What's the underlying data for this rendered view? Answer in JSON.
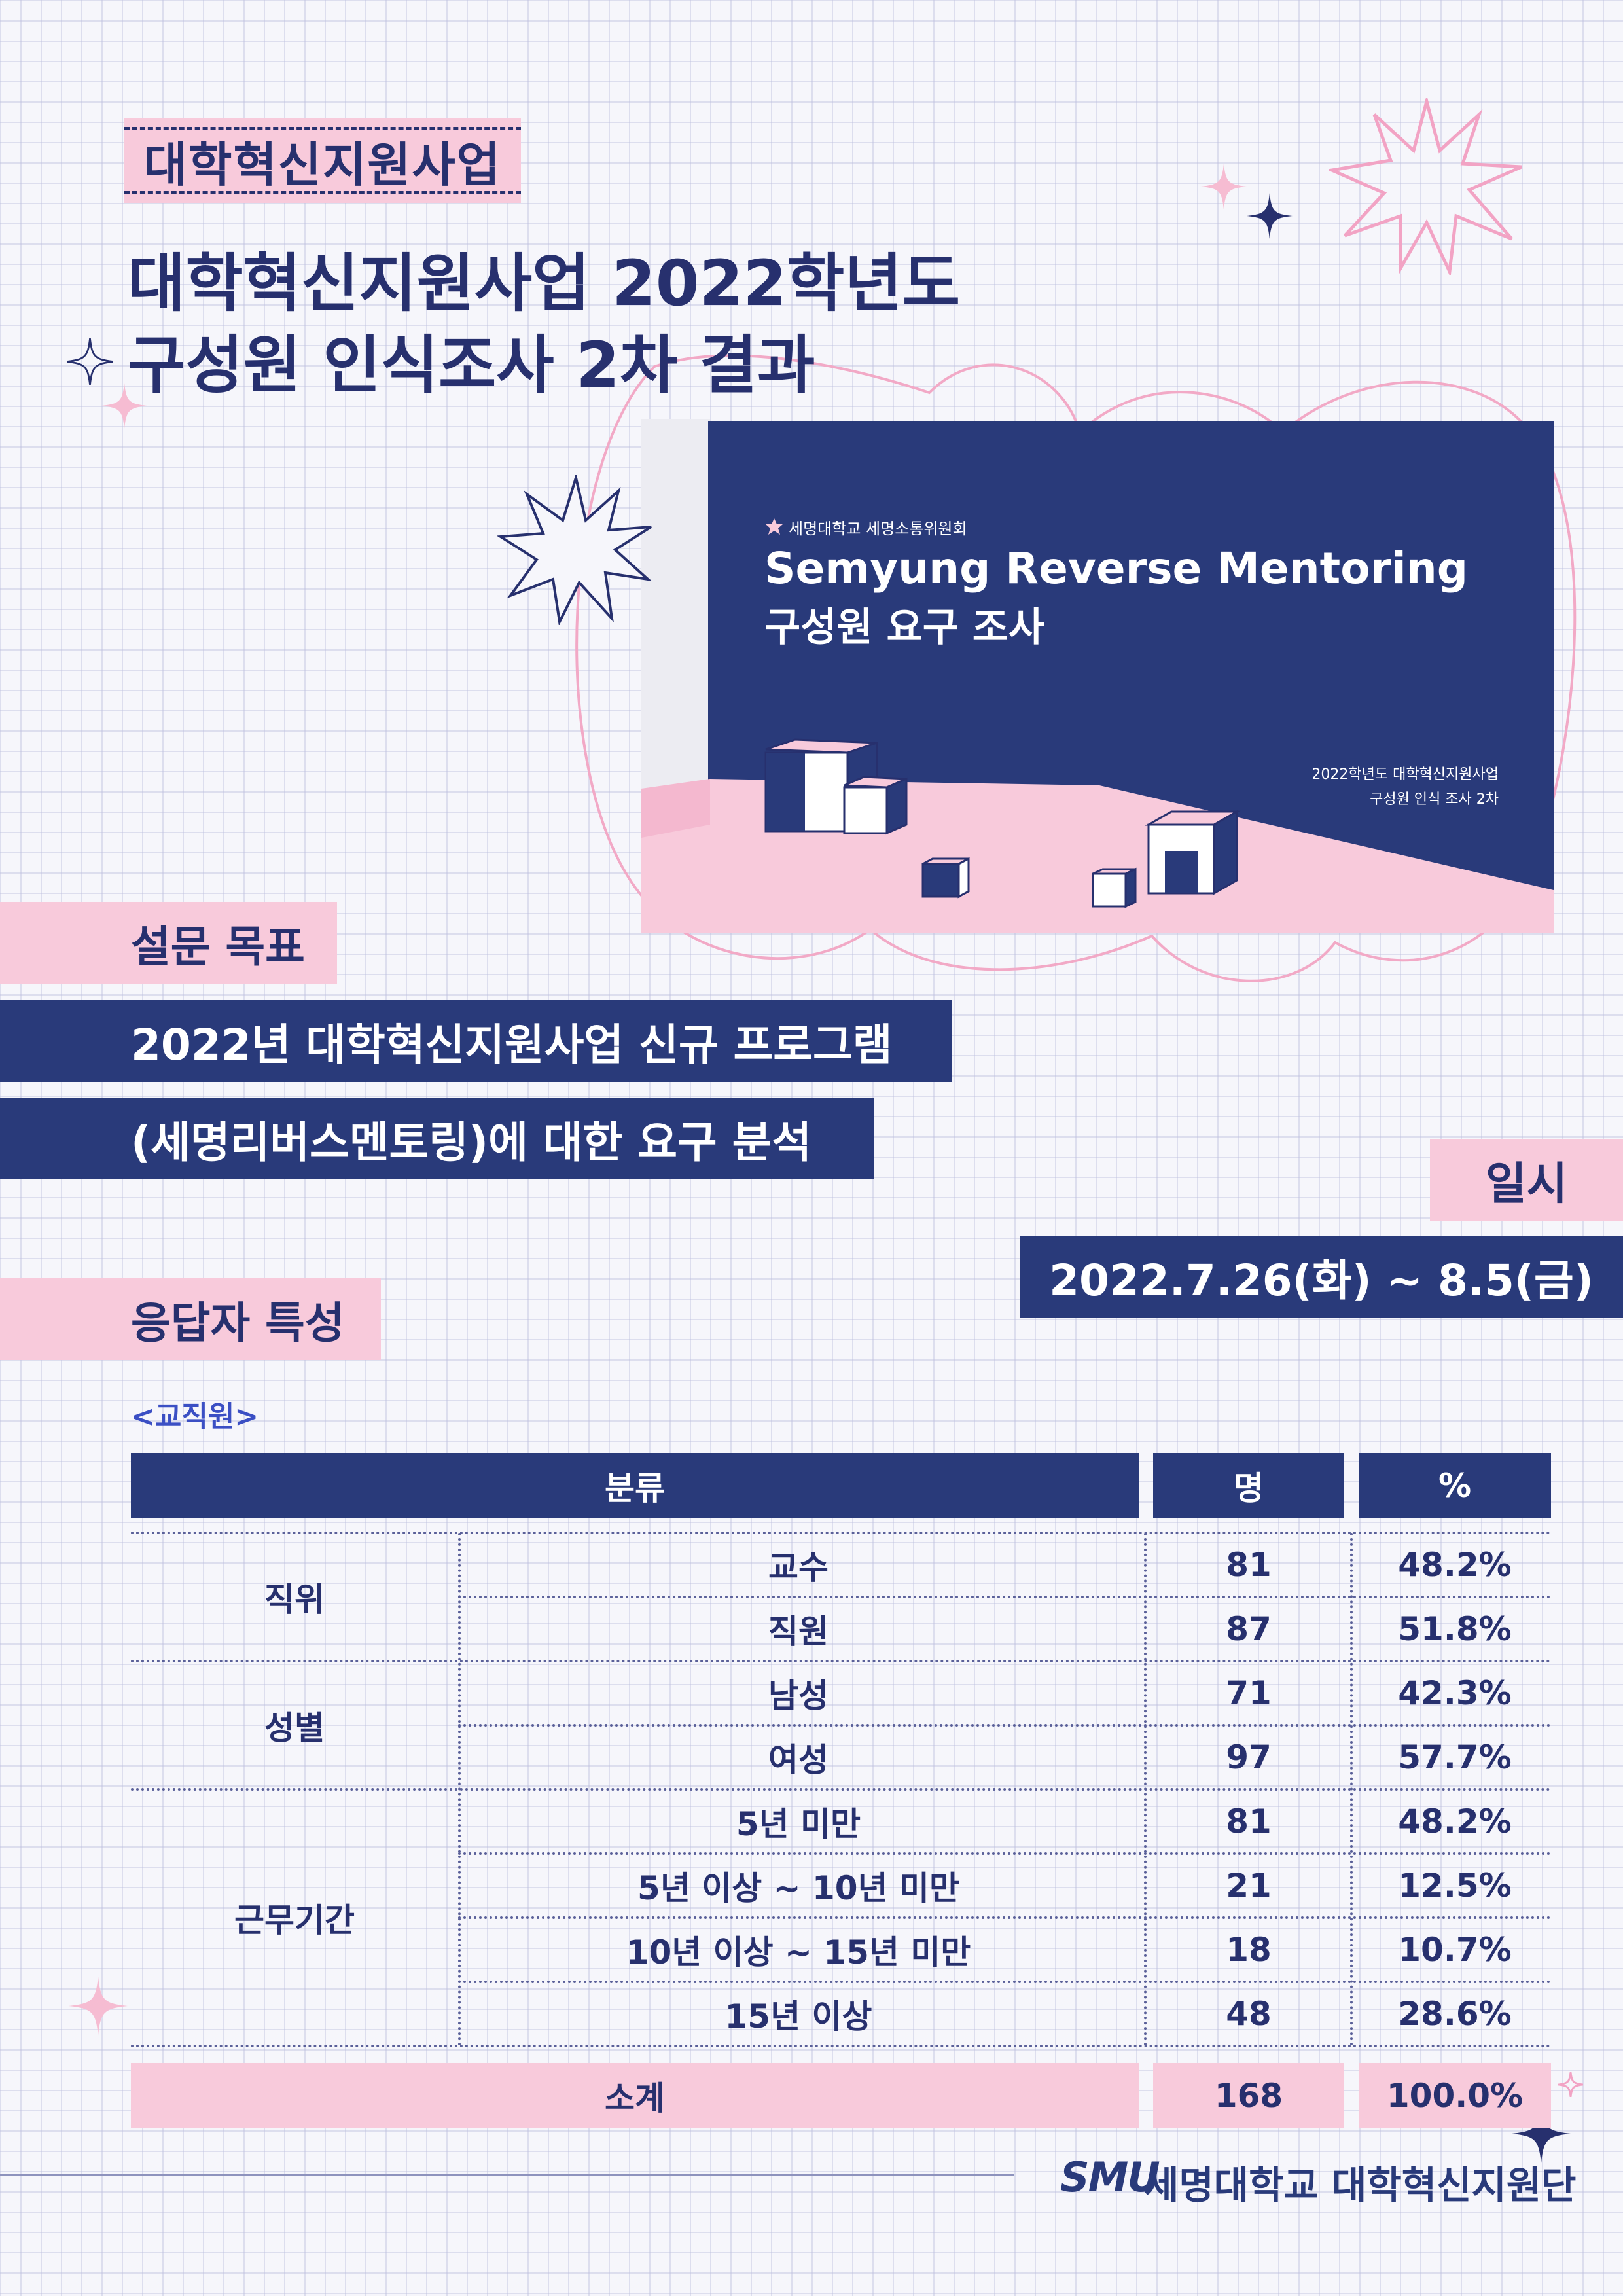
{
  "header": {
    "tag": "대학혁신지원사업",
    "title_line1": "대학혁신지원사업 2022학년도",
    "title_line2": "구성원 인식조사 2차 결과"
  },
  "thumbnail": {
    "org": "세명대학교 세명소통위원회",
    "title_en": "Semyung Reverse Mentoring",
    "title_ko": "구성원 요구 조사",
    "caption_line1": "2022학년도 대학혁신지원사업",
    "caption_line2": "구성원 인식 조사 2차"
  },
  "goal": {
    "label": "설문 목표",
    "line1": "2022년 대학혁신지원사업 신규 프로그램",
    "line2": "(세명리버스멘토링)에 대한 요구 분석"
  },
  "date": {
    "label": "일시",
    "value": "2022.7.26(화) ~ 8.5(금)"
  },
  "respondents": {
    "label": "응답자 특성",
    "group": "<교직원>",
    "headers": [
      "분류",
      "명",
      "%"
    ],
    "categories": [
      "직위",
      "성별",
      "근무기간"
    ],
    "rows": [
      {
        "sub": "교수",
        "count": "81",
        "pct": "48.2%"
      },
      {
        "sub": "직원",
        "count": "87",
        "pct": "51.8%"
      },
      {
        "sub": "남성",
        "count": "71",
        "pct": "42.3%"
      },
      {
        "sub": "여성",
        "count": "97",
        "pct": "57.7%"
      },
      {
        "sub": "5년 미만",
        "count": "81",
        "pct": "48.2%"
      },
      {
        "sub": "5년 이상 ~ 10년 미만",
        "count": "21",
        "pct": "12.5%"
      },
      {
        "sub": "10년 이상 ~ 15년 미만",
        "count": "18",
        "pct": "10.7%"
      },
      {
        "sub": "15년 이상",
        "count": "48",
        "pct": "28.6%"
      }
    ],
    "total": {
      "label": "소계",
      "count": "168",
      "pct": "100.0%"
    }
  },
  "footer": {
    "logo": "SMU",
    "org": "세명대학교 대학혁신지원단"
  },
  "colors": {
    "navy": "#293a7a",
    "pink": "#f8cadb",
    "background": "#f6f6fb"
  }
}
